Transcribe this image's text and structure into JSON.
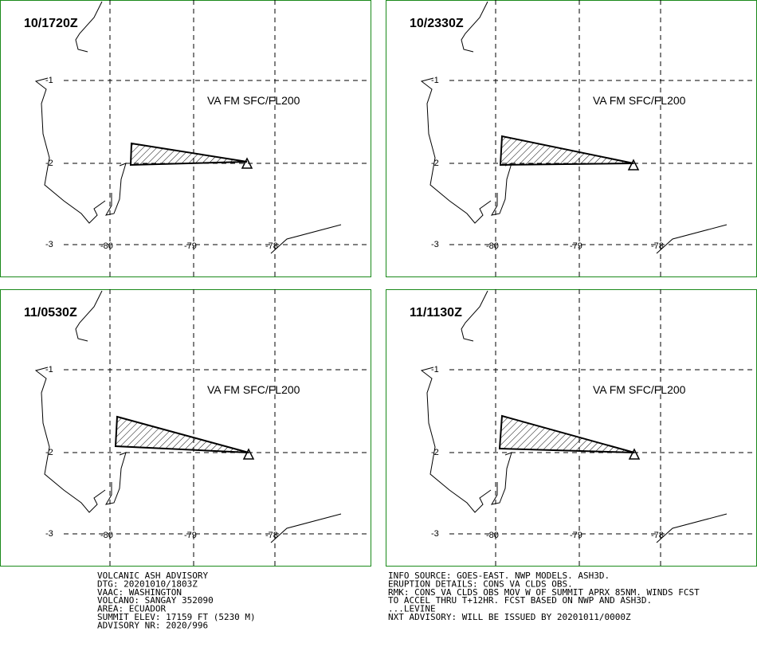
{
  "panels": [
    {
      "time": "10/1720Z",
      "label": "VA FM SFC/FL200"
    },
    {
      "time": "10/2330Z",
      "label": "VA FM SFC/FL200"
    },
    {
      "time": "11/0530Z",
      "label": "VA FM SFC/FL200"
    },
    {
      "time": "11/1130Z",
      "label": "VA FM SFC/FL200"
    }
  ],
  "grid": {
    "lat_labels": [
      "-1",
      "-2",
      "-3"
    ],
    "lon_labels": [
      "-80",
      "-79",
      "-78"
    ]
  },
  "advisory": {
    "left": [
      "VOLCANIC ASH ADVISORY",
      "DTG: 20201010/1803Z",
      "VAAC: WASHINGTON",
      "VOLCANO: SANGAY 352090",
      "AREA: ECUADOR",
      "SUMMIT ELEV: 17159 FT (5230 M)",
      "ADVISORY NR: 2020/996"
    ],
    "right": [
      "INFO SOURCE: GOES-EAST. NWP MODELS. ASH3D.",
      "ERUPTION DETAILS: CONS VA CLDS OBS.",
      "RMK: CONS VA CLDS OBS MOV W OF SUMMIT APRX 85NM. WINDS FCST",
      "TO ACCEL THRU T+12HR. FCST BASED ON NWP AND ASH3D.",
      "...LEVINE",
      "NXT ADVISORY: WILL BE ISSUED BY 20201011/0000Z"
    ]
  }
}
